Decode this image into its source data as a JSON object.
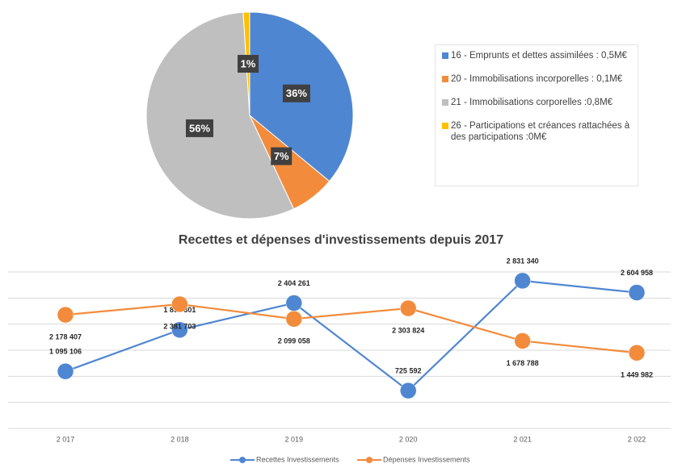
{
  "chart_data": [
    {
      "type": "pie",
      "categories": [
        "16 - Emprunts et dettes assimilées : 0,5M€",
        "20 - Immobilisations incorporelles : 0,1M€",
        "21 - Immobilisations corporelles :0,8M€",
        "26 - Participations et créances rattachées à des participations :0M€"
      ],
      "values": [
        36,
        7,
        56,
        1
      ],
      "value_labels": [
        "36%",
        "7%",
        "56%",
        "1%"
      ],
      "colors": [
        "#4f86d1",
        "#f28c3c",
        "#bfbfbf",
        "#ffc000"
      ]
    },
    {
      "type": "line",
      "title": "Recettes et dépenses d'investissements depuis 2017",
      "categories": [
        "2 017",
        "2 018",
        "2 019",
        "2 020",
        "2 021",
        "2 022"
      ],
      "series": [
        {
          "name": "Recettes Investissements",
          "color": "#4f86d1",
          "values": [
            1095106,
            1890301,
            2404261,
            725592,
            2831340,
            2604958
          ],
          "value_labels": [
            "1 095 106",
            "1 890 301",
            "2 404 261",
            "725 592",
            "2 831 340",
            "2 604 958"
          ]
        },
        {
          "name": "Dépenses Investissements",
          "color": "#f28c3c",
          "values": [
            2178407,
            2381703,
            2099058,
            2303824,
            1678788,
            1449982
          ],
          "value_labels": [
            "2 178 407",
            "2 381 703",
            "2 099 058",
            "2 303 824",
            "1 678 788",
            "1 449 982"
          ]
        }
      ],
      "ylim": [
        0,
        3000000
      ],
      "yticks": [
        0,
        500000,
        1000000,
        1500000,
        2000000,
        2500000,
        3000000
      ],
      "grid": true
    }
  ]
}
